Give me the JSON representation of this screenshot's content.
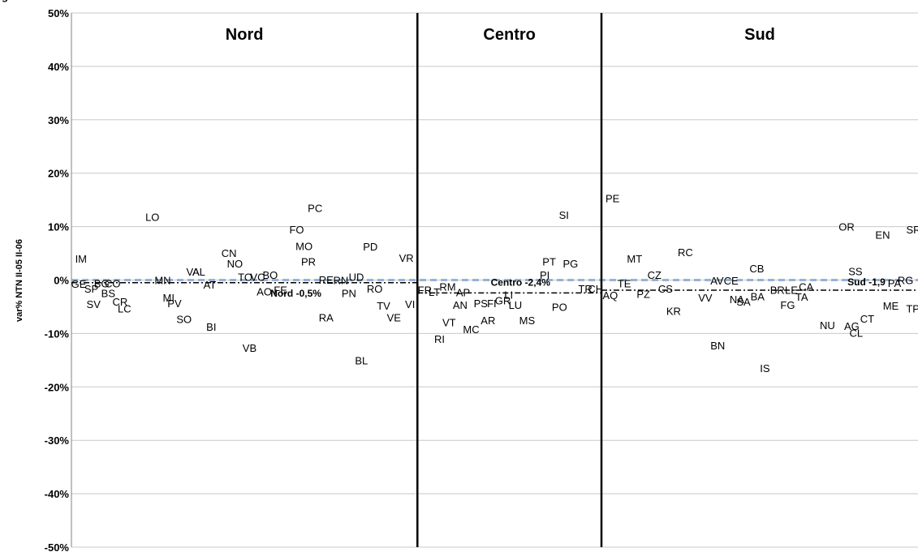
{
  "title": "g",
  "chart_data": {
    "type": "scatter",
    "title": "g",
    "xlabel": "",
    "ylabel": "var% NTN II-05 II-06",
    "ylim": [
      -50,
      50
    ],
    "yticks": [
      50,
      40,
      30,
      20,
      10,
      0,
      -10,
      -20,
      -30,
      -40,
      -50
    ],
    "ytick_labels": [
      "50%",
      "40%",
      "30%",
      "20%",
      "10%",
      "0%",
      "-10%",
      "-20%",
      "-30%",
      "-40%",
      "-50%"
    ],
    "grid": true,
    "colors": {
      "gridline": "#c8c8c8",
      "zero_line": "#95b3d7",
      "area_average": "#000000",
      "divider": "#000000"
    },
    "regions": [
      {
        "name": "Nord",
        "x_start": 0,
        "x_end": 47,
        "average_label": "Nord -0,5%",
        "average": -0.5
      },
      {
        "name": "Centro",
        "x_start": 47,
        "x_end": 72,
        "average_label": "Centro -2,4%",
        "average": -2.4
      },
      {
        "name": "Sud",
        "x_start": 72,
        "x_end": 115,
        "average_label": "Sud -1,9",
        "average": -1.9
      }
    ],
    "points": [
      {
        "label": "IM",
        "x": 1.3,
        "y": 4.0
      },
      {
        "label": "GE",
        "x": 1.0,
        "y": -0.7
      },
      {
        "label": "SP",
        "x": 2.7,
        "y": -1.6
      },
      {
        "label": "BG",
        "x": 4.1,
        "y": -0.6
      },
      {
        "label": "CO",
        "x": 5.6,
        "y": -0.6
      },
      {
        "label": "SV",
        "x": 3.0,
        "y": -4.5
      },
      {
        "label": "BS",
        "x": 5.0,
        "y": -2.4
      },
      {
        "label": "CR",
        "x": 6.6,
        "y": -4.0
      },
      {
        "label": "LC",
        "x": 7.2,
        "y": -5.3
      },
      {
        "label": "LO",
        "x": 11.0,
        "y": 11.8
      },
      {
        "label": "MN",
        "x": 12.4,
        "y": 0.0
      },
      {
        "label": "MI",
        "x": 13.2,
        "y": -3.3
      },
      {
        "label": "PV",
        "x": 14.0,
        "y": -4.3
      },
      {
        "label": "SO",
        "x": 15.3,
        "y": -7.3
      },
      {
        "label": "VA",
        "x": 16.5,
        "y": 1.6
      },
      {
        "label": "AL",
        "x": 17.3,
        "y": 1.6
      },
      {
        "label": "AT",
        "x": 18.8,
        "y": -0.8
      },
      {
        "label": "BI",
        "x": 19.0,
        "y": -8.7
      },
      {
        "label": "CN",
        "x": 21.4,
        "y": 5.1
      },
      {
        "label": "NO",
        "x": 22.2,
        "y": 3.1
      },
      {
        "label": "TO",
        "x": 23.6,
        "y": 0.6
      },
      {
        "label": "VC",
        "x": 25.3,
        "y": 0.6
      },
      {
        "label": "BO",
        "x": 27.0,
        "y": 1.0
      },
      {
        "label": "AO",
        "x": 26.2,
        "y": -2.1
      },
      {
        "label": "FE",
        "x": 28.4,
        "y": -1.8
      },
      {
        "label": "VB",
        "x": 24.2,
        "y": -12.7
      },
      {
        "label": "FO",
        "x": 30.6,
        "y": 9.5
      },
      {
        "label": "PC",
        "x": 33.1,
        "y": 13.5
      },
      {
        "label": "MO",
        "x": 31.6,
        "y": 6.4
      },
      {
        "label": "PR",
        "x": 32.2,
        "y": 3.5
      },
      {
        "label": "RE",
        "x": 34.6,
        "y": 0.1
      },
      {
        "label": "RN",
        "x": 36.6,
        "y": 0.0
      },
      {
        "label": "UD",
        "x": 38.7,
        "y": 0.6
      },
      {
        "label": "PN",
        "x": 37.7,
        "y": -2.4
      },
      {
        "label": "RA",
        "x": 34.6,
        "y": -7.0
      },
      {
        "label": "PD",
        "x": 40.6,
        "y": 6.3
      },
      {
        "label": "RO",
        "x": 41.2,
        "y": -1.6
      },
      {
        "label": "TV",
        "x": 42.4,
        "y": -4.8
      },
      {
        "label": "VE",
        "x": 43.8,
        "y": -7.0
      },
      {
        "label": "VR",
        "x": 45.5,
        "y": 4.2
      },
      {
        "label": "VI",
        "x": 46.0,
        "y": -4.5
      },
      {
        "label": "BL",
        "x": 39.4,
        "y": -15.0
      },
      {
        "label": "FR",
        "x": 48.0,
        "y": -1.8
      },
      {
        "label": "LT",
        "x": 49.3,
        "y": -2.2
      },
      {
        "label": "RM",
        "x": 51.1,
        "y": -1.2
      },
      {
        "label": "RI",
        "x": 50.0,
        "y": -11.0
      },
      {
        "label": "AP",
        "x": 53.2,
        "y": -2.3
      },
      {
        "label": "AN",
        "x": 52.8,
        "y": -4.6
      },
      {
        "label": "VT",
        "x": 51.3,
        "y": -7.9
      },
      {
        "label": "MC",
        "x": 54.3,
        "y": -9.2
      },
      {
        "label": "PS",
        "x": 55.6,
        "y": -4.3
      },
      {
        "label": "FI",
        "x": 57.1,
        "y": -4.3
      },
      {
        "label": "AR",
        "x": 56.6,
        "y": -7.5
      },
      {
        "label": "GR",
        "x": 58.6,
        "y": -3.8
      },
      {
        "label": "LI",
        "x": 59.4,
        "y": -2.7
      },
      {
        "label": "LU",
        "x": 60.3,
        "y": -4.6
      },
      {
        "label": "MS",
        "x": 61.9,
        "y": -7.5
      },
      {
        "label": "PI",
        "x": 64.3,
        "y": 1.0
      },
      {
        "label": "PT",
        "x": 64.9,
        "y": 3.5
      },
      {
        "label": "PO",
        "x": 66.3,
        "y": -5.0
      },
      {
        "label": "PG",
        "x": 67.8,
        "y": 3.1
      },
      {
        "label": "SI",
        "x": 66.9,
        "y": 12.2
      },
      {
        "label": "TR",
        "x": 69.8,
        "y": -1.6
      },
      {
        "label": "CH",
        "x": 71.2,
        "y": -1.6
      },
      {
        "label": "AQ",
        "x": 73.2,
        "y": -2.8
      },
      {
        "label": "PE",
        "x": 73.5,
        "y": 15.3
      },
      {
        "label": "TE",
        "x": 75.1,
        "y": -0.6
      },
      {
        "label": "MT",
        "x": 76.5,
        "y": 4.0
      },
      {
        "label": "PZ",
        "x": 77.7,
        "y": -2.6
      },
      {
        "label": "CZ",
        "x": 79.2,
        "y": 1.0
      },
      {
        "label": "CS",
        "x": 80.7,
        "y": -1.6
      },
      {
        "label": "KR",
        "x": 81.8,
        "y": -5.8
      },
      {
        "label": "RC",
        "x": 83.4,
        "y": 5.2
      },
      {
        "label": "VV",
        "x": 86.1,
        "y": -3.3
      },
      {
        "label": "AV",
        "x": 87.7,
        "y": -0.1
      },
      {
        "label": "BN",
        "x": 87.8,
        "y": -12.2
      },
      {
        "label": "CE",
        "x": 89.6,
        "y": -0.1
      },
      {
        "label": "NA",
        "x": 90.4,
        "y": -3.6
      },
      {
        "label": "SA",
        "x": 91.3,
        "y": -4.0
      },
      {
        "label": "CB",
        "x": 93.1,
        "y": 2.2
      },
      {
        "label": "BA",
        "x": 93.2,
        "y": -3.0
      },
      {
        "label": "BR",
        "x": 95.9,
        "y": -1.8
      },
      {
        "label": "FG",
        "x": 97.3,
        "y": -4.6
      },
      {
        "label": "LE",
        "x": 97.8,
        "y": -1.8
      },
      {
        "label": "TA",
        "x": 99.2,
        "y": -3.1
      },
      {
        "label": "CA",
        "x": 99.8,
        "y": -1.2
      },
      {
        "label": "IS",
        "x": 94.2,
        "y": -16.5
      },
      {
        "label": "NU",
        "x": 102.7,
        "y": -8.4
      },
      {
        "label": "OR",
        "x": 105.3,
        "y": 10.0
      },
      {
        "label": "SS",
        "x": 106.5,
        "y": 1.7
      },
      {
        "label": "AG",
        "x": 106.0,
        "y": -8.6
      },
      {
        "label": "CL",
        "x": 106.6,
        "y": -9.9
      },
      {
        "label": "CT",
        "x": 108.1,
        "y": -7.2
      },
      {
        "label": "EN",
        "x": 110.2,
        "y": 8.5
      },
      {
        "label": "ME",
        "x": 111.3,
        "y": -4.8
      },
      {
        "label": "PA",
        "x": 111.8,
        "y": -0.5
      },
      {
        "label": "RG",
        "x": 113.3,
        "y": 0.0
      },
      {
        "label": "TP",
        "x": 114.3,
        "y": -5.3
      },
      {
        "label": "SR",
        "x": 114.4,
        "y": 9.5
      }
    ]
  }
}
